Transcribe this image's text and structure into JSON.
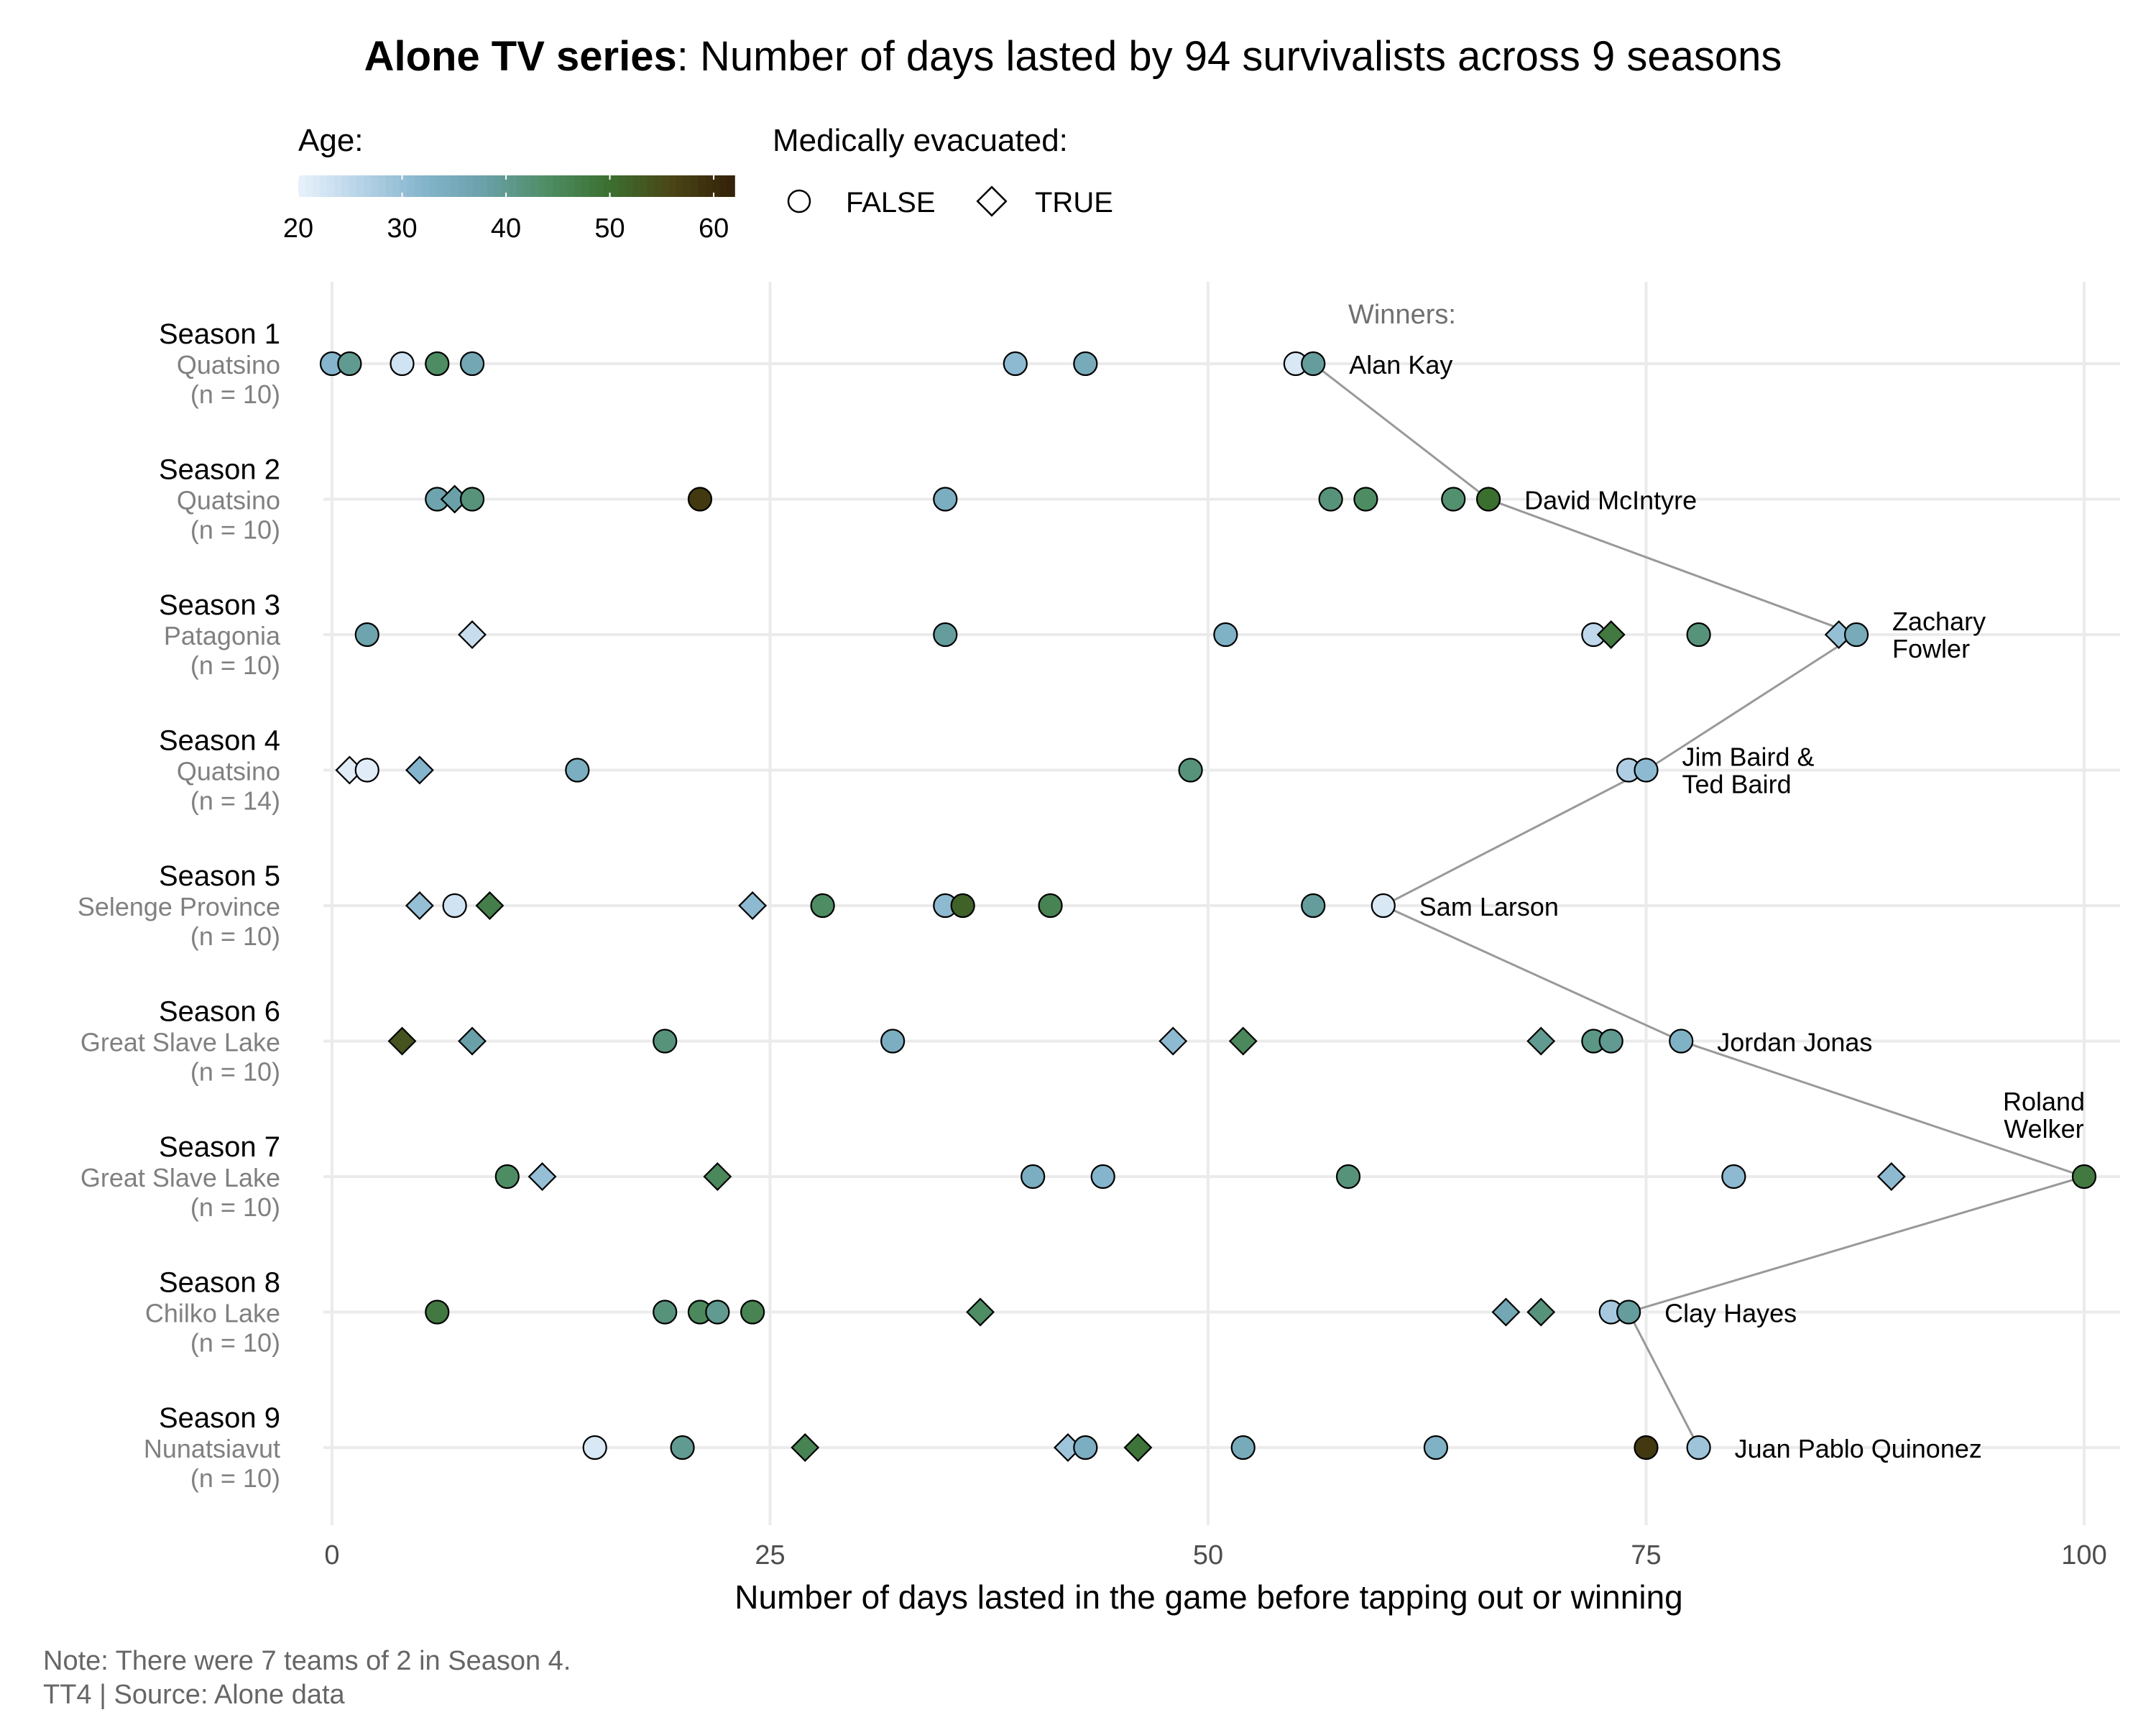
{
  "title": {
    "bold": "Alone TV series",
    "rest": ": Number of days lasted by 94 survivalists across 9 seasons"
  },
  "legend": {
    "age_title": "Age:",
    "age_ticks": [
      "20",
      "30",
      "40",
      "50",
      "60"
    ],
    "age_colors": [
      "#e8f2fb",
      "#b7d3e8",
      "#84b5cc",
      "#6aa0a8",
      "#4e8d64",
      "#3b6f30",
      "#4a4516",
      "#332008"
    ],
    "evac_title": "Medically evacuated:",
    "evac_false": "FALSE",
    "evac_true": "TRUE"
  },
  "winners_label": "Winners:",
  "footnote": {
    "line1": "Note: There were 7 teams of 2 in Season 4.",
    "line2": "TT4 | Source: Alone data"
  },
  "chart_data": {
    "type": "scatter",
    "title": "Alone TV series: Number of days lasted by 94 survivalists across 9 seasons",
    "xlabel": "Number of days lasted in the game before tapping out or winning",
    "xlim": [
      0,
      100
    ],
    "xticks": [
      0,
      25,
      50,
      75,
      100
    ],
    "grid": true,
    "seasons": [
      {
        "name": "Season 1",
        "location": "Quatsino",
        "n": "(n = 10)",
        "winner": "Alan Kay",
        "winner_days": 56,
        "points": [
          {
            "x": 0,
            "age": 32,
            "evac": false
          },
          {
            "x": 1,
            "age": 40,
            "evac": false
          },
          {
            "x": 4,
            "age": 23,
            "evac": false
          },
          {
            "x": 6,
            "age": 44,
            "evac": false
          },
          {
            "x": 8,
            "age": 36,
            "evac": false
          },
          {
            "x": 39,
            "age": 31,
            "evac": false
          },
          {
            "x": 43,
            "age": 35,
            "evac": false
          },
          {
            "x": 55,
            "age": 22,
            "evac": false
          },
          {
            "x": 56,
            "age": 39,
            "evac": false
          }
        ]
      },
      {
        "name": "Season 2",
        "location": "Quatsino",
        "n": "(n = 10)",
        "winner": "David McIntyre",
        "winner_days": 66,
        "points": [
          {
            "x": 6,
            "age": 37,
            "evac": false
          },
          {
            "x": 7,
            "age": 38,
            "evac": true
          },
          {
            "x": 8,
            "age": 42,
            "evac": false
          },
          {
            "x": 21,
            "age": 58,
            "evac": false
          },
          {
            "x": 35,
            "age": 34,
            "evac": false
          },
          {
            "x": 57,
            "age": 42,
            "evac": false
          },
          {
            "x": 59,
            "age": 44,
            "evac": false
          },
          {
            "x": 64,
            "age": 43,
            "evac": false
          },
          {
            "x": 66,
            "age": 50,
            "evac": false
          }
        ]
      },
      {
        "name": "Season 3",
        "location": "Patagonia",
        "n": "(n = 10)",
        "winner": "Zachary\nFowler",
        "winner_days": 87,
        "points": [
          {
            "x": 2,
            "age": 37,
            "evac": false
          },
          {
            "x": 8,
            "age": 24,
            "evac": true
          },
          {
            "x": 35,
            "age": 39,
            "evac": false
          },
          {
            "x": 51,
            "age": 33,
            "evac": false
          },
          {
            "x": 72,
            "age": 25,
            "evac": false
          },
          {
            "x": 73,
            "age": 48,
            "evac": true
          },
          {
            "x": 78,
            "age": 42,
            "evac": false
          },
          {
            "x": 86,
            "age": 30,
            "evac": true
          },
          {
            "x": 87,
            "age": 35,
            "evac": false
          }
        ]
      },
      {
        "name": "Season 4",
        "location": "Quatsino",
        "n": "(n = 14)",
        "winner": "Jim Baird &\nTed Baird",
        "winner_days": 75,
        "points": [
          {
            "x": 1,
            "age": 21,
            "evac": true
          },
          {
            "x": 2,
            "age": 21,
            "evac": false
          },
          {
            "x": 5,
            "age": 32,
            "evac": true
          },
          {
            "x": 14,
            "age": 34,
            "evac": false
          },
          {
            "x": 49,
            "age": 42,
            "evac": false
          },
          {
            "x": 74,
            "age": 27,
            "evac": false
          },
          {
            "x": 75,
            "age": 31,
            "evac": false
          }
        ]
      },
      {
        "name": "Season 5",
        "location": "Selenge Province",
        "n": "(n = 10)",
        "winner": "Sam Larson",
        "winner_days": 60,
        "points": [
          {
            "x": 5,
            "age": 30,
            "evac": true
          },
          {
            "x": 7,
            "age": 23,
            "evac": false
          },
          {
            "x": 9,
            "age": 47,
            "evac": true
          },
          {
            "x": 24,
            "age": 31,
            "evac": true
          },
          {
            "x": 28,
            "age": 44,
            "evac": false
          },
          {
            "x": 35,
            "age": 31,
            "evac": false
          },
          {
            "x": 36,
            "age": 52,
            "evac": false
          },
          {
            "x": 41,
            "age": 46,
            "evac": false
          },
          {
            "x": 56,
            "age": 39,
            "evac": false
          },
          {
            "x": 60,
            "age": 22,
            "evac": false
          }
        ]
      },
      {
        "name": "Season 6",
        "location": "Great Slave Lake",
        "n": "(n = 10)",
        "winner": "Jordan Jonas",
        "winner_days": 77,
        "points": [
          {
            "x": 4,
            "age": 54,
            "evac": true
          },
          {
            "x": 8,
            "age": 38,
            "evac": true
          },
          {
            "x": 19,
            "age": 42,
            "evac": false
          },
          {
            "x": 32,
            "age": 34,
            "evac": false
          },
          {
            "x": 48,
            "age": 31,
            "evac": true
          },
          {
            "x": 52,
            "age": 45,
            "evac": true
          },
          {
            "x": 69,
            "age": 40,
            "evac": true
          },
          {
            "x": 72,
            "age": 41,
            "evac": false
          },
          {
            "x": 73,
            "age": 40,
            "evac": false
          },
          {
            "x": 77,
            "age": 33,
            "evac": false
          }
        ]
      },
      {
        "name": "Season 7",
        "location": "Great Slave Lake",
        "n": "(n = 10)",
        "winner": "Roland\nWelker",
        "winner_days": 100,
        "points": [
          {
            "x": 10,
            "age": 44,
            "evac": false
          },
          {
            "x": 12,
            "age": 30,
            "evac": true
          },
          {
            "x": 22,
            "age": 45,
            "evac": true
          },
          {
            "x": 40,
            "age": 34,
            "evac": false
          },
          {
            "x": 44,
            "age": 32,
            "evac": false
          },
          {
            "x": 58,
            "age": 42,
            "evac": false
          },
          {
            "x": 80,
            "age": 31,
            "evac": false
          },
          {
            "x": 89,
            "age": 31,
            "evac": true
          },
          {
            "x": 100,
            "age": 48,
            "evac": false
          }
        ]
      },
      {
        "name": "Season 8",
        "location": "Chilko Lake",
        "n": "(n = 10)",
        "winner": "Clay Hayes",
        "winner_days": 74,
        "points": [
          {
            "x": 6,
            "age": 48,
            "evac": false
          },
          {
            "x": 19,
            "age": 42,
            "evac": false
          },
          {
            "x": 21,
            "age": 45,
            "evac": false
          },
          {
            "x": 22,
            "age": 40,
            "evac": false
          },
          {
            "x": 24,
            "age": 46,
            "evac": false
          },
          {
            "x": 37,
            "age": 44,
            "evac": true
          },
          {
            "x": 67,
            "age": 36,
            "evac": true
          },
          {
            "x": 69,
            "age": 42,
            "evac": true
          },
          {
            "x": 73,
            "age": 28,
            "evac": false
          },
          {
            "x": 74,
            "age": 39,
            "evac": false
          }
        ]
      },
      {
        "name": "Season 9",
        "location": "Nunatsiavut",
        "n": "(n = 10)",
        "winner": "Juan Pablo Quinonez",
        "winner_days": 78,
        "points": [
          {
            "x": 15,
            "age": 22,
            "evac": false
          },
          {
            "x": 20,
            "age": 40,
            "evac": false
          },
          {
            "x": 27,
            "age": 46,
            "evac": true
          },
          {
            "x": 42,
            "age": 29,
            "evac": true
          },
          {
            "x": 43,
            "age": 34,
            "evac": false
          },
          {
            "x": 46,
            "age": 49,
            "evac": true
          },
          {
            "x": 52,
            "age": 35,
            "evac": false
          },
          {
            "x": 63,
            "age": 33,
            "evac": false
          },
          {
            "x": 75,
            "age": 58,
            "evac": false
          },
          {
            "x": 78,
            "age": 29,
            "evac": false
          }
        ]
      }
    ]
  }
}
